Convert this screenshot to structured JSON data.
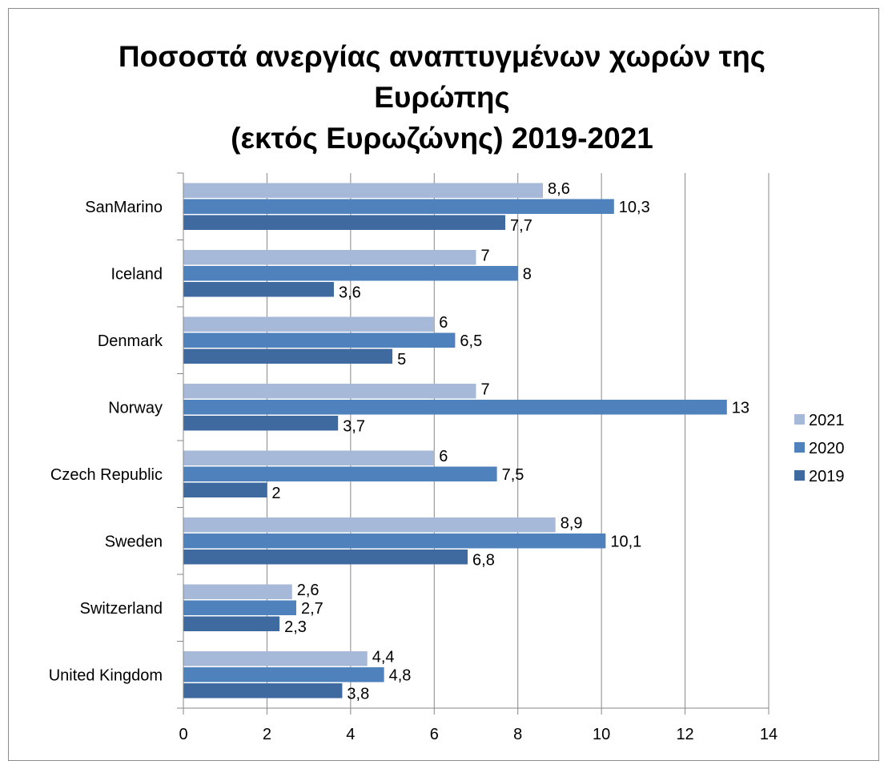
{
  "chart_data": {
    "type": "bar",
    "orientation": "horizontal",
    "title_lines": [
      "Ποσοστά ανεργίας αναπτυγμένων χωρών της",
      "Ευρώπης",
      "(εκτός Ευρωζώνης) 2019-2021"
    ],
    "categories": [
      "SanMarino",
      "Iceland",
      "Denmark",
      "Norway",
      "Czech Republic",
      "Sweden",
      "Switzerland",
      "United Kingdom"
    ],
    "series": [
      {
        "name": "2021",
        "color": "#a7b9d9",
        "values": [
          8.6,
          7,
          6,
          7,
          6,
          8.9,
          2.6,
          4.4
        ],
        "labels": [
          "8,6",
          "7",
          "6",
          "7",
          "6",
          "8,9",
          "2,6",
          "4,4"
        ]
      },
      {
        "name": "2020",
        "color": "#4f81bd",
        "values": [
          10.3,
          8,
          6.5,
          13,
          7.5,
          10.1,
          2.7,
          4.8
        ],
        "labels": [
          "10,3",
          "8",
          "6,5",
          "13",
          "7,5",
          "10,1",
          "2,7",
          "4,8"
        ]
      },
      {
        "name": "2019",
        "color": "#3e6aa0",
        "values": [
          7.7,
          3.6,
          5,
          3.7,
          2,
          6.8,
          2.3,
          3.8
        ],
        "labels": [
          "7,7",
          "3,6",
          "5",
          "3,7",
          "2",
          "6,8",
          "2,3",
          "3,8"
        ]
      }
    ],
    "xlim": [
      0,
      14
    ],
    "xticks": [
      0,
      2,
      4,
      6,
      8,
      10,
      12,
      14
    ],
    "xtick_labels": [
      "0",
      "2",
      "4",
      "6",
      "8",
      "10",
      "12",
      "14"
    ],
    "grid": "vertical",
    "legend_position": "right"
  }
}
